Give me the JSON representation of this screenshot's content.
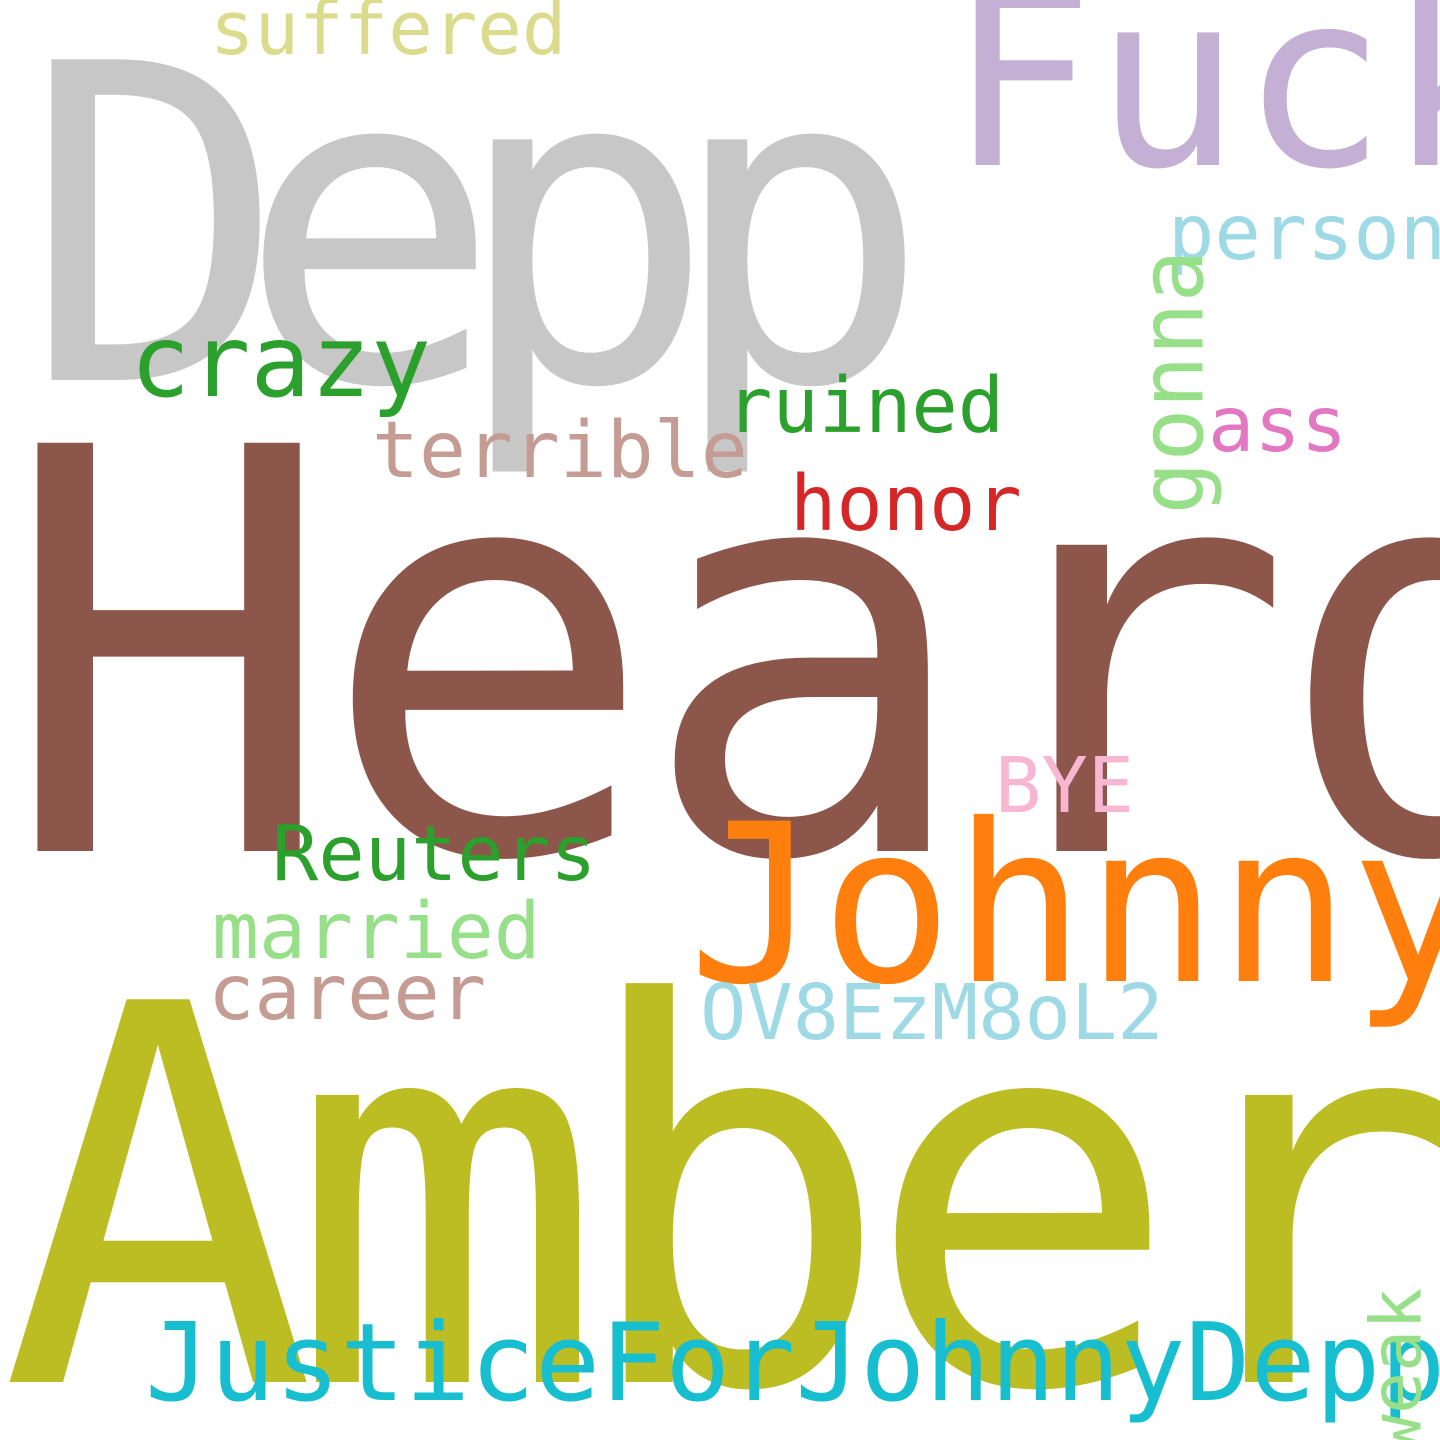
{
  "words": {
    "depp": {
      "text": "Depp",
      "color": "#c7c7c7"
    },
    "fuck": {
      "text": "Fuck",
      "color": "#c5b0d5"
    },
    "suffered": {
      "text": "suffered",
      "color": "#dbdb8d"
    },
    "crazy": {
      "text": "crazy",
      "color": "#2ca02c"
    },
    "person": {
      "text": "person",
      "color": "#9edae5"
    },
    "gonna": {
      "text": "gonna",
      "color": "#98df8a"
    },
    "ruined": {
      "text": "ruined",
      "color": "#2ca02c"
    },
    "ass": {
      "text": "ass",
      "color": "#e377c2"
    },
    "terrible": {
      "text": "terrible",
      "color": "#c49c94"
    },
    "honor": {
      "text": "honor",
      "color": "#d62728"
    },
    "heard": {
      "text": "Heard",
      "color": "#8c564b"
    },
    "bye": {
      "text": "BYE",
      "color": "#f7b6d2"
    },
    "reuters": {
      "text": "Reuters",
      "color": "#2ca02c"
    },
    "johnny": {
      "text": "Johnny",
      "color": "#ff7f0e"
    },
    "married": {
      "text": "married",
      "color": "#98df8a"
    },
    "career": {
      "text": "career",
      "color": "#c49c94"
    },
    "ov8": {
      "text": "OV8EzM8oL2",
      "color": "#9edae5"
    },
    "amber": {
      "text": "Amber",
      "color": "#bcbd22"
    },
    "justice": {
      "text": "JusticeForJohnnyDepp",
      "color": "#17becf"
    },
    "weak": {
      "text": "weak",
      "color": "#98df8a"
    }
  }
}
